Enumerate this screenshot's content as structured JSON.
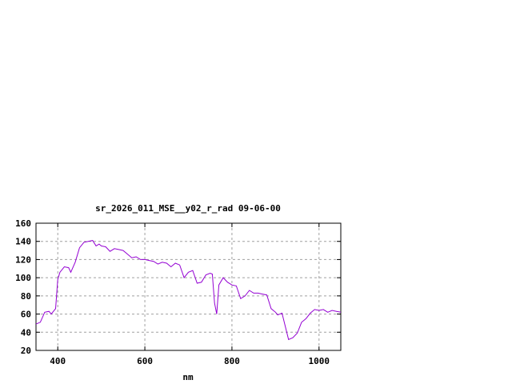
{
  "chart_data": {
    "type": "line",
    "title": "sr_2026_011_MSE__y02_r_rad 09-06-00",
    "xlabel": "nm",
    "ylabel": "",
    "xlim": [
      350,
      1050
    ],
    "ylim": [
      20,
      160
    ],
    "xticks": [
      400,
      600,
      800,
      1000
    ],
    "yticks": [
      20,
      40,
      60,
      80,
      100,
      120,
      140,
      160
    ],
    "grid": true,
    "line_color": "#9400d3",
    "series": [
      {
        "x": [
          350,
          360,
          370,
          380,
          385,
          395,
          400,
          405,
          415,
          425,
          430,
          440,
          450,
          460,
          470,
          480,
          488,
          495,
          500,
          510,
          520,
          530,
          540,
          550,
          560,
          570,
          580,
          590,
          600,
          610,
          620,
          630,
          640,
          650,
          660,
          670,
          680,
          690,
          700,
          710,
          720,
          730,
          740,
          750,
          755,
          760,
          765,
          770,
          780,
          790,
          800,
          810,
          820,
          830,
          840,
          850,
          860,
          870,
          880,
          890,
          900,
          905,
          915,
          930,
          940,
          950,
          960,
          970,
          980,
          990,
          1000,
          1010,
          1020,
          1030,
          1040,
          1050
        ],
        "y": [
          49,
          51,
          62,
          63,
          60,
          66,
          98,
          106,
          112,
          111,
          106,
          117,
          133,
          139,
          140,
          141,
          135,
          137,
          135,
          134,
          129,
          132,
          131,
          130,
          126,
          122,
          123,
          120,
          120,
          119,
          118,
          115,
          117,
          116,
          112,
          116,
          114,
          100,
          106,
          108,
          94,
          95,
          103,
          105,
          104,
          72,
          60,
          92,
          100,
          95,
          92,
          91,
          77,
          80,
          86,
          83,
          83,
          82,
          81,
          66,
          62,
          59,
          61,
          32,
          34,
          39,
          51,
          55,
          61,
          65,
          64,
          65,
          62,
          64,
          63,
          62
        ]
      }
    ]
  }
}
